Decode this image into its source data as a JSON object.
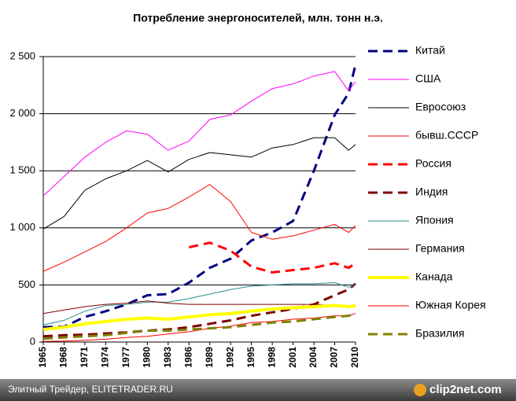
{
  "chart_data": {
    "type": "line",
    "title": "Потребление энергоносителей, млн. тонн н.э.",
    "x": [
      1965,
      1968,
      1971,
      1974,
      1977,
      1980,
      1983,
      1986,
      1989,
      1992,
      1995,
      1998,
      2001,
      2004,
      2007,
      2009,
      2010
    ],
    "xlim": [
      1965,
      2010
    ],
    "xticks": [
      1965,
      1968,
      1971,
      1974,
      1977,
      1980,
      1983,
      1986,
      1989,
      1992,
      1995,
      1998,
      2001,
      2004,
      2007,
      2010
    ],
    "ylim": [
      0,
      2500
    ],
    "yticks": [
      0,
      500,
      {
        "value": 1000,
        "label": "1 000"
      },
      {
        "value": 1500,
        "label": "1 500"
      },
      {
        "value": 2000,
        "label": "2 000"
      },
      {
        "value": 2500,
        "label": "2 500"
      }
    ],
    "grid": true,
    "legend": "right",
    "series": [
      {
        "name": "Китай",
        "color": "#000080",
        "style": "dashed",
        "values": [
          130,
          135,
          220,
          270,
          330,
          410,
          420,
          520,
          650,
          730,
          890,
          960,
          1060,
          1500,
          1990,
          2180,
          2430
        ]
      },
      {
        "name": "США",
        "color": "#ff00ff",
        "style": "solid",
        "values": [
          1280,
          1450,
          1620,
          1750,
          1850,
          1820,
          1680,
          1760,
          1950,
          1990,
          2110,
          2220,
          2260,
          2330,
          2370,
          2200,
          2280
        ]
      },
      {
        "name": "Евросоюз",
        "color": "#000000",
        "style": "solid",
        "values": [
          990,
          1100,
          1330,
          1430,
          1500,
          1590,
          1490,
          1600,
          1660,
          1640,
          1620,
          1700,
          1730,
          1790,
          1790,
          1680,
          1730
        ]
      },
      {
        "name": "бывш.СССР",
        "color": "#ff0000",
        "style": "solid",
        "values": [
          620,
          700,
          790,
          880,
          1000,
          1130,
          1170,
          1270,
          1380,
          1230,
          960,
          900,
          930,
          980,
          1030,
          960,
          1020
        ]
      },
      {
        "name": "Россия",
        "color": "#ff0000",
        "style": "dashed",
        "values": [
          null,
          null,
          null,
          null,
          null,
          null,
          null,
          830,
          870,
          800,
          660,
          610,
          630,
          650,
          690,
          650,
          690
        ]
      },
      {
        "name": "Индия",
        "color": "#800000",
        "style": "dashed",
        "values": [
          50,
          60,
          65,
          75,
          85,
          100,
          110,
          130,
          160,
          190,
          230,
          260,
          290,
          330,
          410,
          460,
          510
        ]
      },
      {
        "name": "Япония",
        "color": "#2a8f8f",
        "style": "solid",
        "values": [
          150,
          190,
          270,
          320,
          330,
          350,
          350,
          380,
          420,
          460,
          490,
          500,
          510,
          510,
          520,
          480,
          500
        ]
      },
      {
        "name": "Германия",
        "color": "#800000",
        "style": "solid",
        "values": [
          250,
          280,
          310,
          330,
          340,
          360,
          340,
          330,
          330,
          330,
          330,
          330,
          330,
          330,
          320,
          300,
          320
        ]
      },
      {
        "name": "Канада",
        "color": "#ffff00",
        "style": "thick",
        "values": [
          110,
          130,
          160,
          180,
          200,
          210,
          200,
          220,
          240,
          250,
          270,
          290,
          300,
          310,
          320,
          310,
          320
        ]
      },
      {
        "name": "Южная Корея",
        "color": "#ff0000",
        "style": "solid",
        "values": [
          5,
          8,
          15,
          25,
          40,
          50,
          70,
          90,
          120,
          140,
          170,
          180,
          200,
          210,
          230,
          230,
          250
        ]
      },
      {
        "name": "Бразилия",
        "color": "#808000",
        "style": "dashed",
        "values": [
          30,
          40,
          50,
          60,
          80,
          100,
          100,
          110,
          120,
          130,
          150,
          170,
          180,
          200,
          220,
          230,
          250
        ]
      }
    ]
  },
  "footer": {
    "source": "Элитный Трейдер, ELITETRADER.RU",
    "logo": "clip2net.com"
  }
}
